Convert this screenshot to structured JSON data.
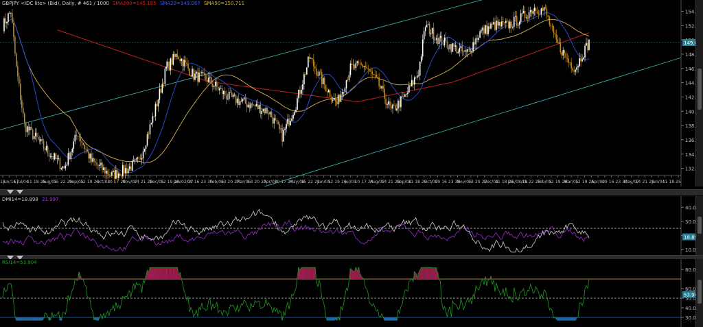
{
  "price_pane": {
    "legend": {
      "symbol": "GBPJPY <IDC lite> (Bid), Daily, # 461 / 1000",
      "sma200": "SMA200=145.185",
      "sma20": "SMA20=149.067",
      "sma50": "SMA50=150.711"
    },
    "last_price_tag": "149.621",
    "y_ticks": [
      "154.000",
      "152.000",
      "150.000",
      "148.000",
      "146.000",
      "144.000",
      "142.000",
      "140.000",
      "138.000",
      "136.000",
      "134.000",
      "132.000"
    ],
    "x_dates": [
      "13",
      "Jun/16",
      "17",
      "Jul/04",
      "11",
      "18",
      "25",
      "Aug/05",
      "15",
      "22",
      "29",
      "Sep/05",
      "12",
      "19",
      "26",
      "Oct/03",
      "10",
      "17",
      "24",
      "Nov/07",
      "14",
      "21",
      "28",
      "Dec/05",
      "12",
      "19",
      "26",
      "Jan/02/17",
      "09",
      "16",
      "23",
      "30",
      "Feb/06",
      "13",
      "20",
      "27",
      "Mar/06",
      "13",
      "20",
      "27",
      "Apr/03",
      "10",
      "17",
      "24",
      "May/08",
      "15",
      "22",
      "29",
      "Jun/05",
      "12",
      "19",
      "26",
      "Jul/03",
      "10",
      "17",
      "24",
      "Aug/07",
      "14",
      "21",
      "28",
      "Sep/04",
      "11",
      "18",
      "25",
      "Oct/02",
      "09",
      "16",
      "23",
      "30",
      "Nov/06",
      "13",
      "20",
      "27",
      "Dec/04",
      "11",
      "18",
      "25",
      "Jan/08/18",
      "15",
      "22",
      "29",
      "Feb/05",
      "12",
      "19",
      "26",
      "Mar/05",
      "12",
      "19",
      "26",
      "Apr/02",
      "09",
      "16",
      "23",
      "30",
      "May/07",
      "14",
      "21",
      "28",
      "Jun/04",
      "11",
      "18",
      "25"
    ],
    "colors": {
      "candle_up": "#ffffff",
      "candle_down": "#b8892a",
      "sma200": "#c0201c",
      "sma20": "#2748c9",
      "sma50": "#c8a24a",
      "channel": "#3aa8a8",
      "tag_bg": "#2a7f95"
    }
  },
  "dmi_pane": {
    "legend": {
      "name": "DMI14=18.898",
      "second": "21.997"
    },
    "y_ticks": [
      "40.000",
      "30.000",
      "20.000",
      "10.000"
    ],
    "value_tag": "18.898",
    "colors": {
      "plus_di": "#c0c0c0",
      "minus_di": "#8a2ab8",
      "tag_bg": "#2a7f95",
      "ref": "#d0d0d0"
    }
  },
  "rsi_pane": {
    "legend": {
      "name": "RSI14=53.904"
    },
    "y_ticks": [
      "80.000",
      "60.000",
      "50.000",
      "40.000",
      "30.000"
    ],
    "value_tag": "53.904",
    "colors": {
      "rsi": "#1e8a1e",
      "overbought": "#d8b34a",
      "oversold": "#2a6fd0",
      "ob_fill": "#9a1e4e",
      "os_fill": "#1f67c0",
      "tag_bg": "#2a7f95"
    }
  },
  "chart_data": {
    "type": "candlestick",
    "title": "GBPJPY <IDC lite> (Bid), Daily, # 461 / 1000",
    "ylim": [
      131,
      155
    ],
    "series": [
      {
        "name": "SMA200=145.185"
      },
      {
        "name": "SMA20=149.067"
      },
      {
        "name": "SMA50=150.711"
      }
    ],
    "last": 149.621,
    "indicators": [
      {
        "name": "DMI14=18.898",
        "values": [
          18.898,
          21.997
        ],
        "ylim": [
          5,
          45
        ],
        "reference": 25
      },
      {
        "name": "RSI14=53.904",
        "values": [
          53.904
        ],
        "ylim": [
          25,
          85
        ],
        "overbought": 70,
        "oversold": 30,
        "reference": 50
      }
    ]
  }
}
